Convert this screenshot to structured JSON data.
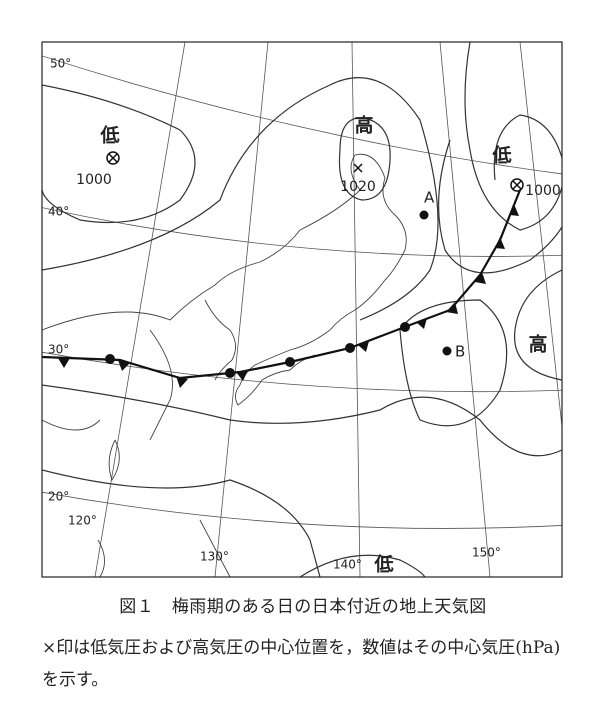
{
  "map": {
    "latitude_labels": [
      "50°",
      "40°",
      "30°",
      "20°"
    ],
    "longitude_labels": [
      "120°",
      "130°",
      "140°",
      "150°"
    ],
    "pressure_systems": [
      {
        "label": "低",
        "pressure": 1000
      },
      {
        "label": "高",
        "pressure": 1020
      },
      {
        "label": "低",
        "pressure": 1000
      },
      {
        "label": "高"
      },
      {
        "label": "低"
      }
    ],
    "points": [
      "A",
      "B"
    ]
  },
  "figure": {
    "title": "図１　梅雨期のある日の日本付近の地上天気図",
    "note": "×印は低気圧および高気圧の中心位置を，数値はその中心気圧(hPa)を示す。"
  }
}
